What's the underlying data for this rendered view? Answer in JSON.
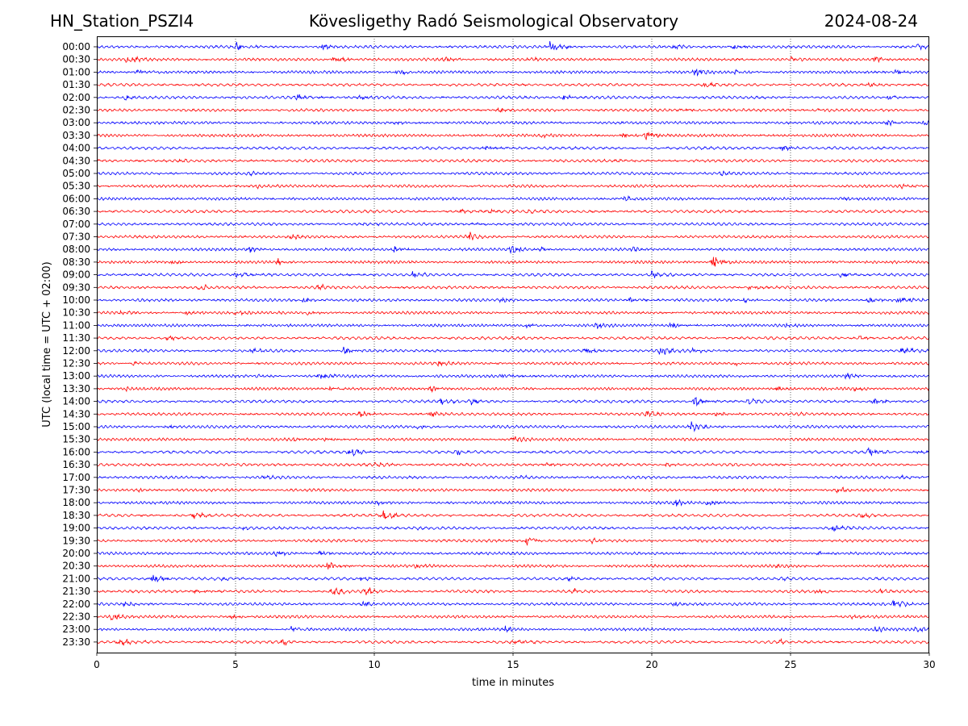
{
  "header": {
    "station": "HN_Station_PSZI4",
    "observatory": "Kövesligethy Radó Seismological Observatory",
    "date": "2024-08-24"
  },
  "chart_data": {
    "type": "line",
    "xlabel": "time in minutes",
    "ylabel": "UTC (local time = UTC + 02:00)",
    "xlim": [
      0,
      30
    ],
    "x_ticks": [
      "0",
      "5",
      "10",
      "15",
      "20",
      "25",
      "30"
    ],
    "x_tick_values": [
      0,
      5,
      10,
      15,
      20,
      25,
      30
    ],
    "grid": "vertical dotted",
    "trace_colors": [
      "#0000ff",
      "#ff0000"
    ],
    "row_labels": [
      "00:00",
      "00:30",
      "01:00",
      "01:30",
      "02:00",
      "02:30",
      "03:00",
      "03:30",
      "04:00",
      "04:30",
      "05:00",
      "05:30",
      "06:00",
      "06:30",
      "07:00",
      "07:30",
      "08:00",
      "08:30",
      "09:00",
      "09:30",
      "10:00",
      "10:30",
      "11:00",
      "11:30",
      "12:00",
      "12:30",
      "13:00",
      "13:30",
      "14:00",
      "14:30",
      "15:00",
      "15:30",
      "16:00",
      "16:30",
      "17:00",
      "17:30",
      "18:00",
      "18:30",
      "19:00",
      "19:30",
      "20:00",
      "20:30",
      "21:00",
      "21:30",
      "22:00",
      "22:30",
      "23:00",
      "23:30"
    ],
    "events": [
      [
        [
          5.0,
          0.5
        ],
        [
          8.1,
          0.4
        ],
        [
          16.3,
          0.8
        ],
        [
          20.8,
          0.4
        ],
        [
          22.9,
          0.4
        ],
        [
          29.5,
          0.4
        ]
      ],
      [
        [
          1.1,
          0.5
        ],
        [
          8.5,
          0.7
        ],
        [
          12.5,
          0.4
        ],
        [
          15.5,
          0.3
        ],
        [
          25.0,
          0.3
        ],
        [
          28.0,
          0.4
        ]
      ],
      [
        [
          1.5,
          0.3
        ],
        [
          10.8,
          0.4
        ],
        [
          21.5,
          0.6
        ],
        [
          23.0,
          0.3
        ],
        [
          28.8,
          0.4
        ]
      ],
      [
        [
          21.9,
          0.4
        ],
        [
          27.8,
          0.2
        ]
      ],
      [
        [
          1.0,
          0.3
        ],
        [
          7.2,
          0.4
        ],
        [
          9.5,
          0.3
        ],
        [
          16.8,
          0.4
        ],
        [
          28.5,
          0.3
        ]
      ],
      [
        [
          14.5,
          0.3
        ],
        [
          21.1,
          0.3
        ],
        [
          26.0,
          0.2
        ]
      ],
      [
        [
          10.7,
          0.3
        ],
        [
          28.5,
          0.4
        ],
        [
          29.8,
          0.3
        ]
      ],
      [
        [
          16.0,
          0.2
        ],
        [
          18.9,
          0.3
        ],
        [
          19.8,
          0.5
        ],
        [
          24.0,
          0.2
        ]
      ],
      [
        [
          14.0,
          0.3
        ],
        [
          24.7,
          0.4
        ]
      ],
      [
        [
          3.0,
          0.2
        ],
        [
          18.7,
          0.2
        ]
      ],
      [
        [
          5.5,
          0.2
        ],
        [
          22.5,
          0.3
        ]
      ],
      [
        [
          5.8,
          0.2
        ],
        [
          29.0,
          0.2
        ]
      ],
      [
        [
          19.0,
          0.4
        ],
        [
          26.8,
          0.2
        ]
      ],
      [
        [
          13.1,
          0.2
        ],
        [
          14.2,
          0.2
        ],
        [
          15.5,
          0.2
        ]
      ],
      [
        [
          9.4,
          0.2
        ],
        [
          13.5,
          0.2
        ]
      ],
      [
        [
          7.0,
          0.3
        ],
        [
          13.4,
          0.6
        ]
      ],
      [
        [
          5.5,
          0.3
        ],
        [
          10.7,
          0.4
        ],
        [
          14.9,
          0.7
        ],
        [
          16.0,
          0.3
        ],
        [
          19.3,
          0.3
        ]
      ],
      [
        [
          2.7,
          0.3
        ],
        [
          6.5,
          0.4
        ],
        [
          22.2,
          0.9
        ],
        [
          26.5,
          0.2
        ]
      ],
      [
        [
          5.0,
          0.5
        ],
        [
          11.4,
          0.4
        ],
        [
          20.0,
          0.5
        ],
        [
          26.8,
          0.4
        ]
      ],
      [
        [
          3.7,
          0.5
        ],
        [
          8.0,
          0.4
        ],
        [
          23.5,
          0.5
        ]
      ],
      [
        [
          7.4,
          0.4
        ],
        [
          14.6,
          0.4
        ],
        [
          19.2,
          0.3
        ],
        [
          23.3,
          0.3
        ],
        [
          27.8,
          0.4
        ],
        [
          28.9,
          0.6
        ]
      ],
      [
        [
          0.8,
          0.3
        ],
        [
          3.2,
          0.3
        ],
        [
          5.0,
          0.4
        ],
        [
          7.6,
          0.3
        ]
      ],
      [
        [
          15.5,
          0.3
        ],
        [
          18.0,
          0.4
        ],
        [
          20.7,
          0.4
        ],
        [
          24.8,
          0.2
        ]
      ],
      [
        [
          2.5,
          0.3
        ],
        [
          27.5,
          0.3
        ]
      ],
      [
        [
          5.6,
          0.4
        ],
        [
          8.9,
          0.5
        ],
        [
          17.6,
          0.4
        ],
        [
          20.3,
          0.7
        ],
        [
          21.5,
          0.3
        ],
        [
          29.0,
          0.5
        ]
      ],
      [
        [
          1.2,
          0.3
        ],
        [
          12.3,
          0.3
        ],
        [
          23.0,
          0.2
        ]
      ],
      [
        [
          5.8,
          0.2
        ],
        [
          8.0,
          0.5
        ],
        [
          14.6,
          0.3
        ],
        [
          27.0,
          0.4
        ]
      ],
      [
        [
          1.0,
          0.3
        ],
        [
          8.4,
          0.3
        ],
        [
          12.0,
          0.4
        ],
        [
          24.5,
          0.3
        ],
        [
          27.3,
          0.3
        ]
      ],
      [
        [
          12.4,
          0.4
        ],
        [
          13.5,
          0.5
        ],
        [
          21.5,
          0.7
        ],
        [
          23.5,
          0.4
        ],
        [
          28.0,
          0.5
        ]
      ],
      [
        [
          9.5,
          0.5
        ],
        [
          12.0,
          0.4
        ],
        [
          19.8,
          0.5
        ],
        [
          22.3,
          0.3
        ],
        [
          25.0,
          0.2
        ]
      ],
      [
        [
          2.5,
          0.2
        ],
        [
          11.5,
          0.3
        ],
        [
          21.4,
          0.7
        ],
        [
          24.5,
          0.2
        ]
      ],
      [
        [
          7.1,
          0.3
        ],
        [
          8.2,
          0.3
        ],
        [
          15.0,
          0.4
        ]
      ],
      [
        [
          9.1,
          0.6
        ],
        [
          13.0,
          0.3
        ],
        [
          27.8,
          0.7
        ],
        [
          29.5,
          0.3
        ]
      ],
      [
        [
          10.0,
          0.3
        ],
        [
          16.2,
          0.3
        ],
        [
          20.5,
          0.2
        ]
      ],
      [
        [
          6.0,
          0.2
        ],
        [
          15.2,
          0.2
        ],
        [
          29.0,
          0.3
        ]
      ],
      [
        [
          1.5,
          0.2
        ],
        [
          26.7,
          0.5
        ]
      ],
      [
        [
          10.0,
          0.3
        ],
        [
          20.8,
          0.5
        ],
        [
          22.0,
          0.3
        ]
      ],
      [
        [
          3.5,
          0.6
        ],
        [
          10.3,
          0.8
        ],
        [
          27.5,
          0.3
        ]
      ],
      [
        [
          5.3,
          0.2
        ],
        [
          11.5,
          0.2
        ],
        [
          26.5,
          0.5
        ]
      ],
      [
        [
          15.5,
          0.6
        ],
        [
          17.8,
          0.2
        ],
        [
          21.5,
          0.2
        ]
      ],
      [
        [
          6.5,
          0.4
        ],
        [
          8.0,
          0.3
        ],
        [
          26.0,
          0.3
        ]
      ],
      [
        [
          8.3,
          0.6
        ],
        [
          11.5,
          0.3
        ],
        [
          24.5,
          0.2
        ]
      ],
      [
        [
          2.0,
          0.7
        ],
        [
          4.5,
          0.3
        ],
        [
          9.5,
          0.4
        ],
        [
          17.0,
          0.3
        ],
        [
          24.5,
          0.2
        ]
      ],
      [
        [
          3.5,
          0.3
        ],
        [
          8.5,
          0.6
        ],
        [
          9.6,
          0.6
        ],
        [
          17.2,
          0.3
        ],
        [
          25.9,
          0.4
        ],
        [
          28.2,
          0.3
        ]
      ],
      [
        [
          1.0,
          0.3
        ],
        [
          9.6,
          0.4
        ],
        [
          20.8,
          0.3
        ],
        [
          28.7,
          0.6
        ]
      ],
      [
        [
          0.5,
          0.4
        ],
        [
          4.8,
          0.3
        ],
        [
          27.2,
          0.3
        ]
      ],
      [
        [
          7.0,
          0.4
        ],
        [
          14.7,
          0.5
        ],
        [
          28.0,
          0.4
        ],
        [
          29.5,
          0.3
        ]
      ],
      [
        [
          0.8,
          0.5
        ],
        [
          6.7,
          0.4
        ],
        [
          15.0,
          0.4
        ],
        [
          24.6,
          0.3
        ]
      ]
    ]
  }
}
